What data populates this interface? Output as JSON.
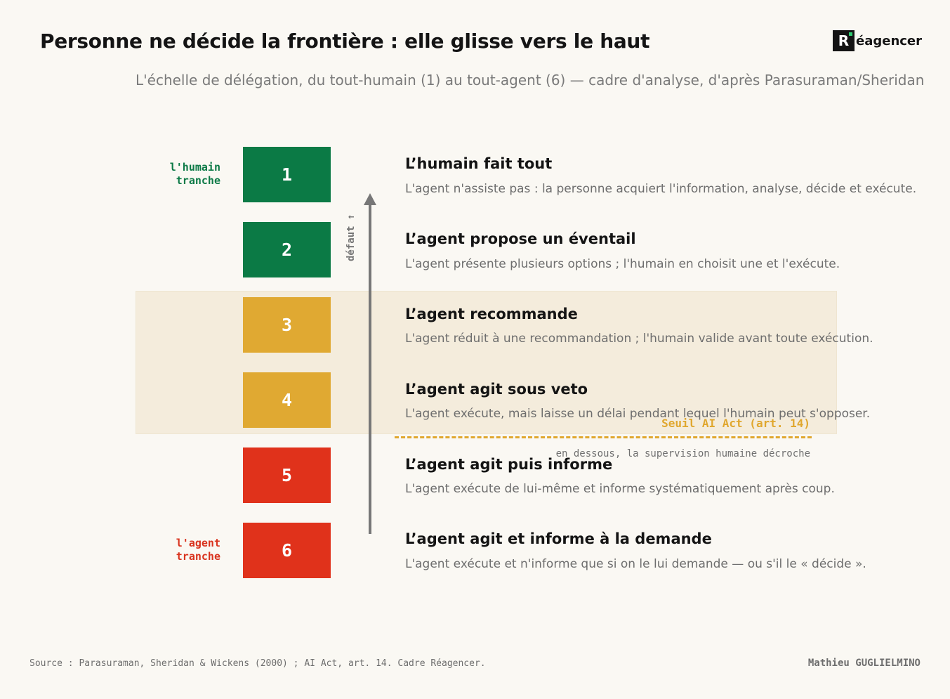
{
  "title": "Personne ne décide la frontière : elle glisse vers le haut",
  "subtitle": "L'échelle de délégation, du tout-humain (1) au tout-agent (6) — cadre d'analyse, d'après Parasuraman/Sheridan",
  "logo": {
    "mark": "R",
    "word": "éagencer"
  },
  "side_labels": {
    "top": {
      "line1": "l'humain",
      "line2": "tranche",
      "color": "#0d7a47"
    },
    "bottom": {
      "line1": "l'agent",
      "line2": "tranche",
      "color": "#d9331e"
    }
  },
  "default_label": "défaut ↑",
  "levels": [
    {
      "number": "1",
      "color": "#0b7a45",
      "title": "L’humain fait tout",
      "desc": "L'agent n'assiste pas : la personne acquiert l'information, analyse, décide et exécute."
    },
    {
      "number": "2",
      "color": "#0b7a45",
      "title": "L’agent propose un éventail",
      "desc": "L'agent présente plusieurs options ; l'humain en choisit une et l'exécute."
    },
    {
      "number": "3",
      "color": "#e0a932",
      "title": "L’agent recommande",
      "desc": "L'agent réduit à une recommandation ; l'humain valide avant toute exécution."
    },
    {
      "number": "4",
      "color": "#e0a932",
      "title": "L’agent agit sous veto",
      "desc": "L'agent exécute, mais laisse un délai pendant lequel l'humain peut s'opposer."
    },
    {
      "number": "5",
      "color": "#e0321b",
      "title": "L’agent agit puis informe",
      "desc": "L'agent exécute de lui-même et informe systématiquement après coup."
    },
    {
      "number": "6",
      "color": "#e0321b",
      "title": "L’agent agit et informe à la demande",
      "desc": "L'agent exécute et n'informe que si on le lui demande — ou s'il le « décide »."
    }
  ],
  "threshold": {
    "label": "Seuil AI Act (art. 14)",
    "note": "en dessous, la supervision humaine décroche",
    "color": "#e0a72e"
  },
  "footer": {
    "source": "Source : Parasuraman, Sheridan & Wickens (2000) ; AI Act, art. 14. Cadre Réagencer.",
    "author": "Mathieu GUGLIELMINO"
  }
}
